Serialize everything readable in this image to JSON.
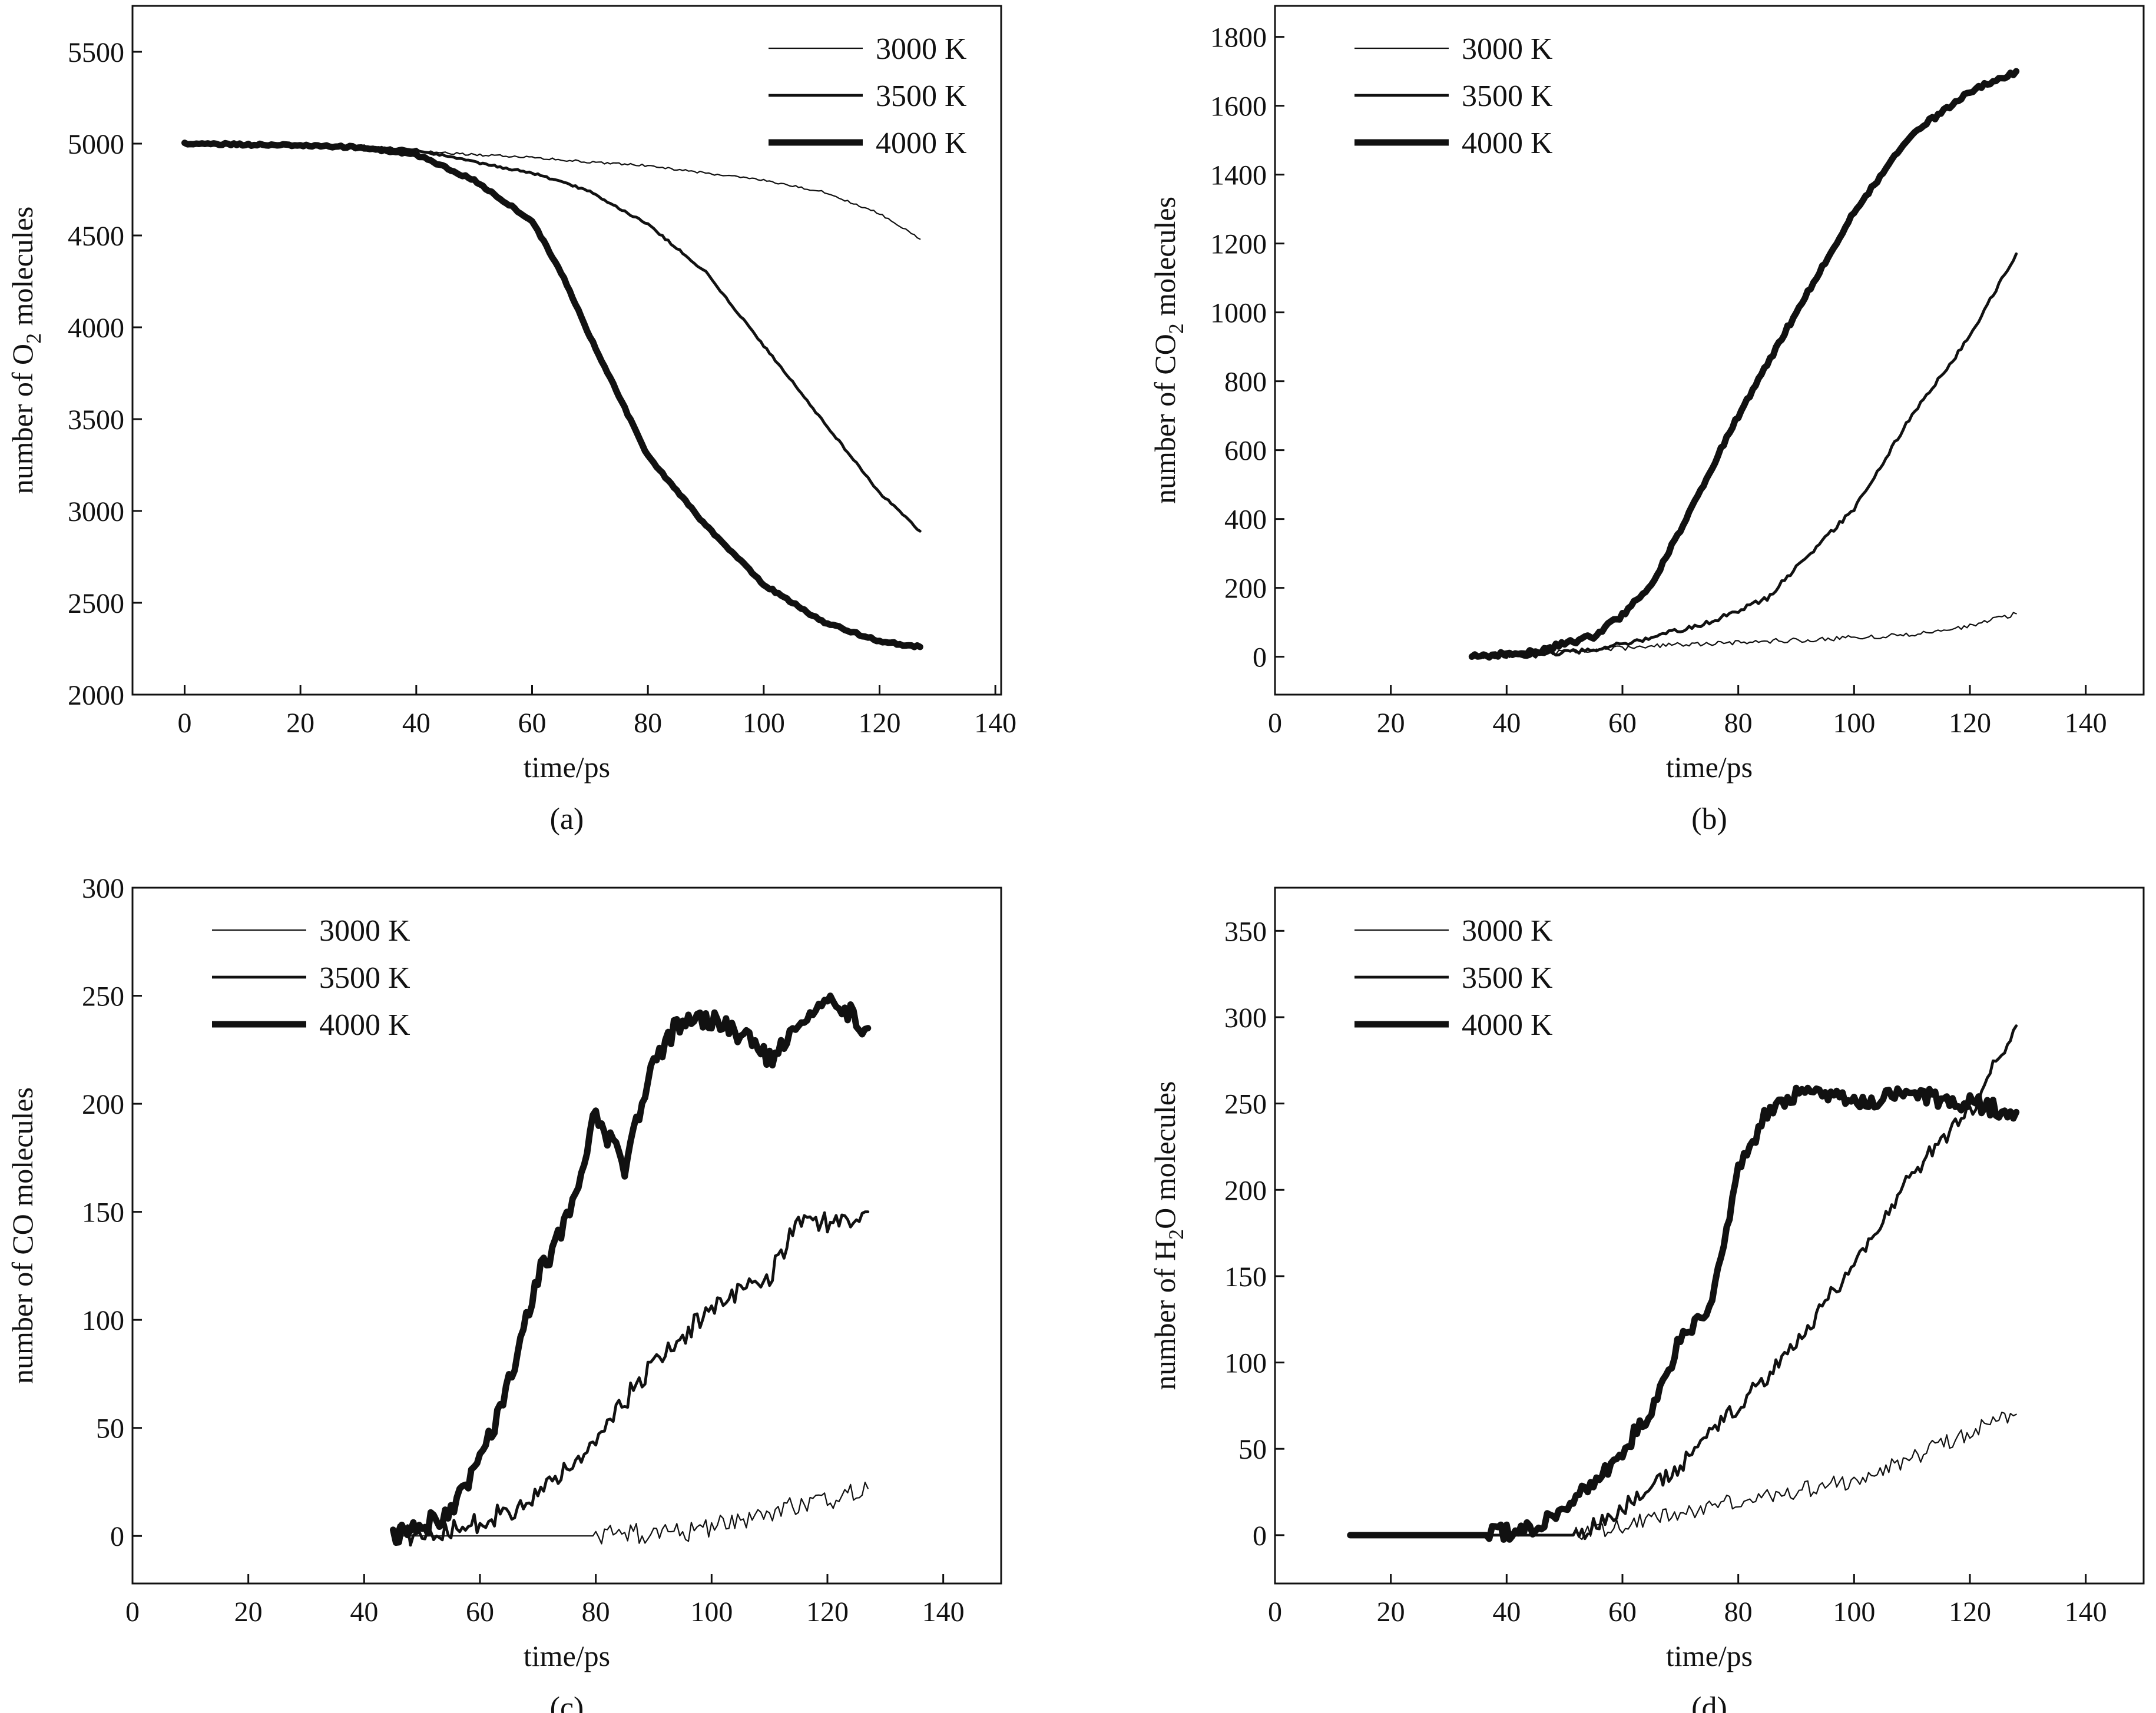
{
  "figure": {
    "colors": {
      "ink": "#111111",
      "background": "#ffffff"
    },
    "line_widths_by_temperature": {
      "3000 K": "thin",
      "3500 K": "medium",
      "4000 K": "thick"
    }
  },
  "chart_data": [
    {
      "id": "a",
      "type": "line",
      "caption": "(a)",
      "title": "",
      "xlabel": "time/ps",
      "ylabel": {
        "prefix": "number of O",
        "subscript": "2",
        "suffix": " molecules"
      },
      "xlim": [
        -9,
        141
      ],
      "ylim": [
        2000,
        5750
      ],
      "xticks": [
        0,
        20,
        40,
        60,
        80,
        100,
        120,
        140
      ],
      "yticks": [
        2000,
        2500,
        3000,
        3500,
        4000,
        4500,
        5000,
        5500
      ],
      "legend_position": "top-right",
      "noise": 6,
      "series": [
        {
          "name": "3000 K",
          "weight": "thin",
          "points": [
            [
              0,
              5000
            ],
            [
              10,
              4995
            ],
            [
              20,
              4988
            ],
            [
              30,
              4982
            ],
            [
              40,
              4960
            ],
            [
              50,
              4940
            ],
            [
              60,
              4925
            ],
            [
              70,
              4900
            ],
            [
              80,
              4880
            ],
            [
              90,
              4840
            ],
            [
              100,
              4800
            ],
            [
              110,
              4740
            ],
            [
              120,
              4620
            ],
            [
              127,
              4480
            ]
          ]
        },
        {
          "name": "3500 K",
          "weight": "medium",
          "points": [
            [
              0,
              5000
            ],
            [
              10,
              4995
            ],
            [
              20,
              4990
            ],
            [
              30,
              4985
            ],
            [
              40,
              4965
            ],
            [
              50,
              4900
            ],
            [
              60,
              4840
            ],
            [
              70,
              4740
            ],
            [
              80,
              4560
            ],
            [
              90,
              4300
            ],
            [
              100,
              3900
            ],
            [
              110,
              3500
            ],
            [
              120,
              3100
            ],
            [
              127,
              2890
            ]
          ]
        },
        {
          "name": "4000 K",
          "weight": "thick",
          "points": [
            [
              0,
              5000
            ],
            [
              10,
              4995
            ],
            [
              20,
              4990
            ],
            [
              30,
              4980
            ],
            [
              40,
              4940
            ],
            [
              50,
              4800
            ],
            [
              60,
              4580
            ],
            [
              65,
              4300
            ],
            [
              70,
              3950
            ],
            [
              80,
              3300
            ],
            [
              90,
              2920
            ],
            [
              100,
              2600
            ],
            [
              110,
              2400
            ],
            [
              120,
              2290
            ],
            [
              127,
              2260
            ]
          ]
        }
      ]
    },
    {
      "id": "b",
      "type": "line",
      "caption": "(b)",
      "title": "",
      "xlabel": "time/ps",
      "ylabel": {
        "prefix": "number of CO",
        "subscript": "2",
        "suffix": " molecules"
      },
      "xlim": [
        0,
        150
      ],
      "ylim": [
        -110,
        1890
      ],
      "xticks": [
        0,
        20,
        40,
        60,
        80,
        100,
        120,
        140
      ],
      "yticks": [
        0,
        200,
        400,
        600,
        800,
        1000,
        1200,
        1400,
        1600,
        1800
      ],
      "legend_position": "top-left",
      "noise": 7,
      "series": [
        {
          "name": "3000 K",
          "weight": "thin",
          "points": [
            [
              34,
              0
            ],
            [
              45,
              8
            ],
            [
              55,
              20
            ],
            [
              70,
              35
            ],
            [
              85,
              45
            ],
            [
              100,
              55
            ],
            [
              110,
              65
            ],
            [
              120,
              90
            ],
            [
              128,
              125
            ]
          ]
        },
        {
          "name": "3500 K",
          "weight": "medium",
          "points": [
            [
              34,
              0
            ],
            [
              45,
              5
            ],
            [
              55,
              20
            ],
            [
              65,
              55
            ],
            [
              75,
              100
            ],
            [
              85,
              170
            ],
            [
              90,
              260
            ],
            [
              100,
              430
            ],
            [
              110,
              700
            ],
            [
              120,
              930
            ],
            [
              128,
              1170
            ]
          ]
        },
        {
          "name": "4000 K",
          "weight": "thick",
          "points": [
            [
              34,
              0
            ],
            [
              45,
              15
            ],
            [
              55,
              60
            ],
            [
              60,
              120
            ],
            [
              65,
              210
            ],
            [
              70,
              370
            ],
            [
              80,
              700
            ],
            [
              90,
              1000
            ],
            [
              100,
              1290
            ],
            [
              110,
              1520
            ],
            [
              120,
              1640
            ],
            [
              128,
              1700
            ]
          ]
        }
      ]
    },
    {
      "id": "c",
      "type": "line",
      "caption": "(c)",
      "title": "",
      "xlabel": "time/ps",
      "ylabel": {
        "prefix": "number of CO molecules",
        "subscript": "",
        "suffix": ""
      },
      "xlim": [
        0,
        150
      ],
      "ylim": [
        -22,
        300
      ],
      "xticks": [
        0,
        20,
        40,
        60,
        80,
        100,
        120,
        140
      ],
      "yticks": [
        0,
        50,
        100,
        150,
        200,
        250,
        300
      ],
      "legend_position": "top-left",
      "noise": 5,
      "series": [
        {
          "name": "3000 K",
          "weight": "thin",
          "points": [
            [
              45,
              0
            ],
            [
              60,
              0
            ],
            [
              80,
              0
            ],
            [
              95,
              2
            ],
            [
              105,
              6
            ],
            [
              112,
              12
            ],
            [
              120,
              16
            ],
            [
              127,
              22
            ]
          ]
        },
        {
          "name": "3500 K",
          "weight": "medium",
          "points": [
            [
              45,
              0
            ],
            [
              55,
              2
            ],
            [
              60,
              6
            ],
            [
              70,
              18
            ],
            [
              80,
              45
            ],
            [
              90,
              80
            ],
            [
              100,
              105
            ],
            [
              110,
              120
            ],
            [
              115,
              145
            ],
            [
              120,
              145
            ],
            [
              127,
              150
            ]
          ]
        },
        {
          "name": "4000 K",
          "weight": "thick",
          "points": [
            [
              45,
              0
            ],
            [
              55,
              10
            ],
            [
              60,
              35
            ],
            [
              65,
              70
            ],
            [
              70,
              120
            ],
            [
              75,
              145
            ],
            [
              80,
              195
            ],
            [
              85,
              170
            ],
            [
              90,
              220
            ],
            [
              95,
              240
            ],
            [
              100,
              238
            ],
            [
              105,
              232
            ],
            [
              110,
              220
            ],
            [
              115,
              240
            ],
            [
              120,
              250
            ],
            [
              127,
              235
            ]
          ]
        }
      ]
    },
    {
      "id": "d",
      "type": "line",
      "caption": "(d)",
      "title": "",
      "xlabel": "time/ps",
      "ylabel": {
        "prefix": "number of H",
        "subscript": "2",
        "suffix": "O molecules"
      },
      "xlim": [
        0,
        150
      ],
      "ylim": [
        -28,
        375
      ],
      "xticks": [
        0,
        20,
        40,
        60,
        80,
        100,
        120,
        140
      ],
      "yticks": [
        0,
        50,
        100,
        150,
        200,
        250,
        300,
        350
      ],
      "legend_position": "top-left",
      "noise": 5,
      "series": [
        {
          "name": "3000 K",
          "weight": "thin",
          "points": [
            [
              13,
              0
            ],
            [
              40,
              0
            ],
            [
              52,
              0
            ],
            [
              60,
              5
            ],
            [
              70,
              12
            ],
            [
              80,
              20
            ],
            [
              90,
              25
            ],
            [
              100,
              32
            ],
            [
              110,
              45
            ],
            [
              120,
              60
            ],
            [
              128,
              70
            ]
          ]
        },
        {
          "name": "3500 K",
          "weight": "medium",
          "points": [
            [
              13,
              0
            ],
            [
              40,
              0
            ],
            [
              52,
              0
            ],
            [
              60,
              15
            ],
            [
              70,
              40
            ],
            [
              80,
              75
            ],
            [
              90,
              110
            ],
            [
              95,
              135
            ],
            [
              100,
              155
            ],
            [
              110,
              210
            ],
            [
              120,
              245
            ],
            [
              128,
              295
            ]
          ]
        },
        {
          "name": "4000 K",
          "weight": "thick",
          "points": [
            [
              13,
              0
            ],
            [
              37,
              0
            ],
            [
              45,
              5
            ],
            [
              55,
              30
            ],
            [
              65,
              70
            ],
            [
              70,
              115
            ],
            [
              75,
              130
            ],
            [
              80,
              210
            ],
            [
              85,
              245
            ],
            [
              90,
              255
            ],
            [
              95,
              255
            ],
            [
              100,
              250
            ],
            [
              110,
              255
            ],
            [
              120,
              250
            ],
            [
              128,
              245
            ]
          ]
        }
      ]
    }
  ]
}
